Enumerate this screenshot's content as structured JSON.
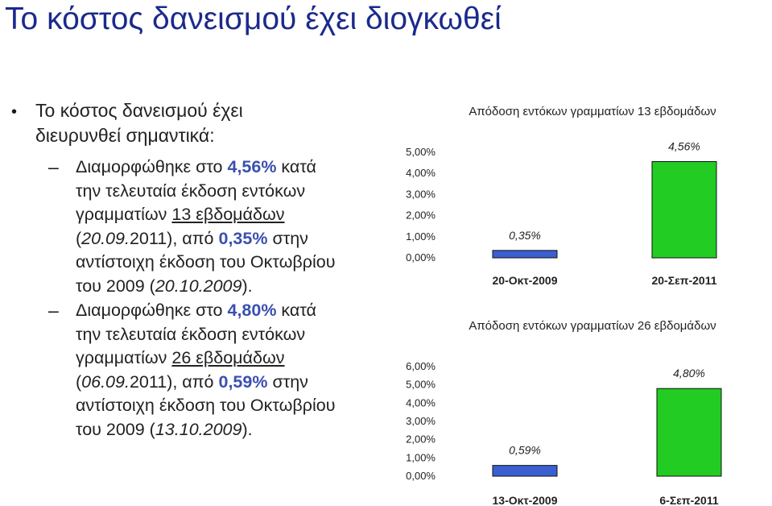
{
  "slide": {
    "title": "Το κόστος δανεισμού έχει διογκωθεί",
    "bullet": {
      "line1": "Το κόστος δανεισμού έχει",
      "line2": "διευρυνθεί σημαντικά:"
    },
    "item1": {
      "l1a": "Διαμορφώθηκε στο ",
      "l1v": "4,56%",
      "l1b": " κατά",
      "l2": "την τελευταία έκδοση εντόκων",
      "l3a": "γραμματίων ",
      "l3u": "13 εβδομάδων",
      "l4a": "(",
      "l4i": "20.09.",
      "l4b": "2011), από ",
      "l4v": "0,35%",
      "l4c": " στην",
      "l5": "αντίστοιχη έκδοση του Οκτωβρίου",
      "l6a": "του 2009 (",
      "l6i": "20.10.2009",
      "l6b": ")."
    },
    "item2": {
      "l1a": "Διαμορφώθηκε στο ",
      "l1v": "4,80%",
      "l1b": " κατά",
      "l2": "την τελευταία έκδοση εντόκων",
      "l3a": "γραμματίων ",
      "l3u": "26 εβδομάδων",
      "l4a": "(",
      "l4i": "06.09.",
      "l4b": "2011), από ",
      "l4v": "0,59%",
      "l4c": " στην",
      "l5": "αντίστοιχη έκδοση του Οκτωβρίου",
      "l6a": "του 2009 (",
      "l6i": "13.10.2009",
      "l6b": ")."
    }
  },
  "colors": {
    "title": "#1b2a8c",
    "highlight": "#3a4fb0",
    "bar_old": "#3a5fd0",
    "bar_new": "#22cc22"
  },
  "chart_data": [
    {
      "type": "bar",
      "title": "Απόδοση εντόκων γραμματίων 13 εβδομάδων",
      "categories": [
        "20-Οκτ-2009",
        "20-Σεπ-2011"
      ],
      "values": [
        0.35,
        4.56
      ],
      "value_labels": [
        "0,35%",
        "4,56%"
      ],
      "yticks": [
        "0,00%",
        "1,00%",
        "2,00%",
        "3,00%",
        "4,00%",
        "5,00%"
      ],
      "ylim": [
        0,
        5
      ],
      "xlabel": "",
      "ylabel": "",
      "grid": false
    },
    {
      "type": "bar",
      "title": "Απόδοση εντόκων γραμματίων 26 εβδομάδων",
      "categories": [
        "13-Οκτ-2009",
        "6-Σεπ-2011"
      ],
      "values": [
        0.59,
        4.8
      ],
      "value_labels": [
        "0,59%",
        "4,80%"
      ],
      "yticks": [
        "0,00%",
        "1,00%",
        "2,00%",
        "3,00%",
        "4,00%",
        "5,00%",
        "6,00%"
      ],
      "ylim": [
        0,
        6
      ],
      "xlabel": "",
      "ylabel": "",
      "grid": false
    }
  ]
}
